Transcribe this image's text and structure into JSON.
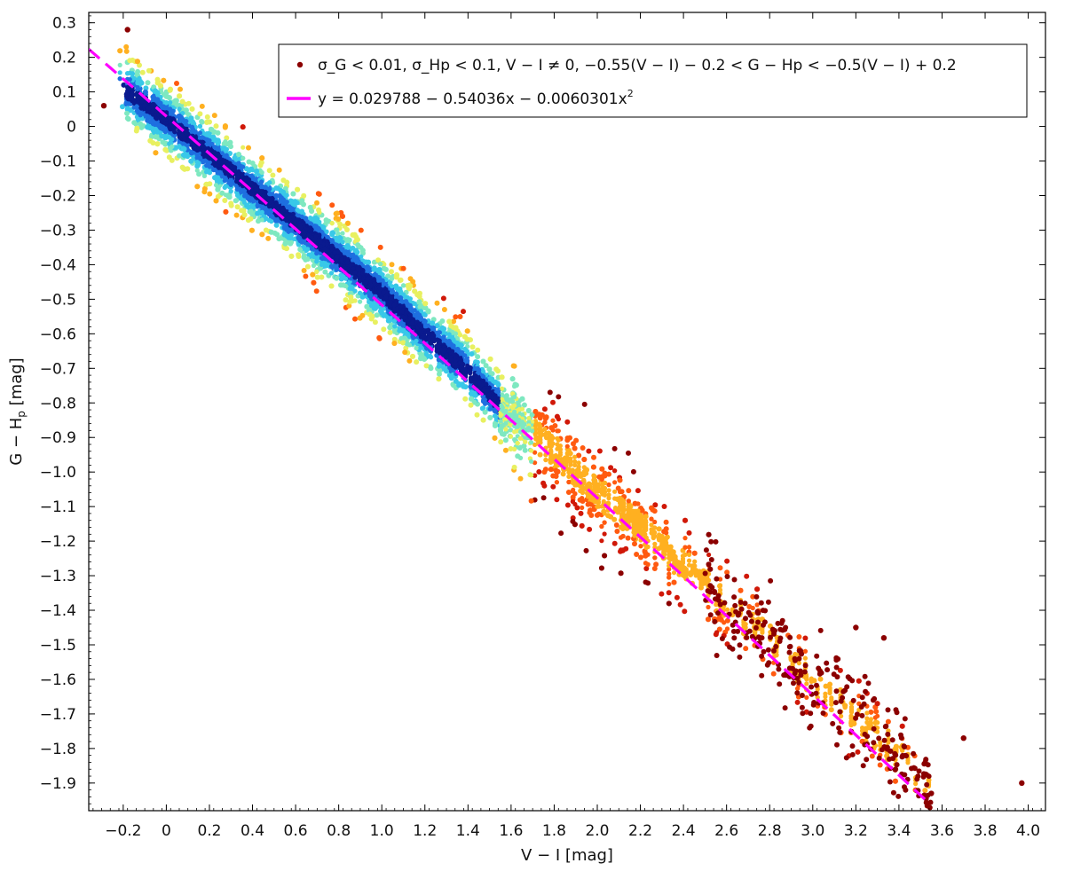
{
  "chart_data": {
    "type": "scatter",
    "title": "",
    "xlabel": "V − I [mag]",
    "ylabel": "G − H",
    "ylabel_sub": "p",
    "ylabel_unit": " [mag]",
    "xlim": [
      -0.36,
      4.08
    ],
    "ylim": [
      -1.98,
      0.33
    ],
    "x_ticks": [
      -0.2,
      0,
      0.2,
      0.4,
      0.6,
      0.8,
      1.0,
      1.2,
      1.4,
      1.6,
      1.8,
      2.0,
      2.2,
      2.4,
      2.6,
      2.8,
      3.0,
      3.2,
      3.4,
      3.6,
      3.8,
      4.0
    ],
    "x_tick_labels": [
      "−0.2",
      "0",
      "0.2",
      "0.4",
      "0.6",
      "0.8",
      "1.0",
      "1.2",
      "1.4",
      "1.6",
      "1.8",
      "2.0",
      "2.2",
      "2.4",
      "2.6",
      "2.8",
      "3.0",
      "3.2",
      "3.4",
      "3.6",
      "3.8",
      "4.0"
    ],
    "y_ticks": [
      0.3,
      0.2,
      0.1,
      0,
      -0.1,
      -0.2,
      -0.3,
      -0.4,
      -0.5,
      -0.6,
      -0.7,
      -0.8,
      -0.9,
      -1.0,
      -1.1,
      -1.2,
      -1.3,
      -1.4,
      -1.5,
      -1.6,
      -1.7,
      -1.8,
      -1.9
    ],
    "y_tick_labels": [
      "0.3",
      "0.2",
      "0.1",
      "0",
      "−0.1",
      "−0.2",
      "−0.3",
      "−0.4",
      "−0.5",
      "−0.6",
      "−0.7",
      "−0.8",
      "−0.9",
      "−1.0",
      "−1.1",
      "−1.2",
      "−1.3",
      "−1.4",
      "−1.5",
      "−1.6",
      "−1.7",
      "−1.8",
      "−1.9"
    ],
    "grid": false,
    "legend_position": "top-right",
    "series": [
      {
        "kind": "scatter-density",
        "legend_text": "σ_G < 0.01, σ_Hp < 0.1, V − I ≠ 0, −0.55(V − I) − 0.2 < G − Hp < −0.5(V − I) + 0.2",
        "marker_color": "#8b0000",
        "colormap": [
          "#0a1a8f",
          "#1e6fe0",
          "#38c8e8",
          "#7ee8c0",
          "#e8f060",
          "#ffb020",
          "#ff5a10",
          "#d01808",
          "#8b0000"
        ],
        "ridge": [
          {
            "x": -0.2,
            "y": 0.11
          },
          {
            "x": 0.0,
            "y": 0.02
          },
          {
            "x": 0.2,
            "y": -0.08
          },
          {
            "x": 0.4,
            "y": -0.18
          },
          {
            "x": 0.6,
            "y": -0.28
          },
          {
            "x": 0.8,
            "y": -0.38
          },
          {
            "x": 1.0,
            "y": -0.48
          },
          {
            "x": 1.2,
            "y": -0.6
          },
          {
            "x": 1.4,
            "y": -0.71
          },
          {
            "x": 1.6,
            "y": -0.84
          },
          {
            "x": 1.8,
            "y": -0.94
          },
          {
            "x": 2.0,
            "y": -1.06
          },
          {
            "x": 2.2,
            "y": -1.16
          },
          {
            "x": 2.4,
            "y": -1.27
          },
          {
            "x": 2.6,
            "y": -1.38
          },
          {
            "x": 2.8,
            "y": -1.49
          },
          {
            "x": 3.0,
            "y": -1.6
          },
          {
            "x": 3.2,
            "y": -1.71
          },
          {
            "x": 3.4,
            "y": -1.82
          },
          {
            "x": 3.55,
            "y": -1.92
          }
        ],
        "outliers": [
          {
            "x": -0.18,
            "y": 0.28
          },
          {
            "x": -0.29,
            "y": 0.06
          },
          {
            "x": 3.7,
            "y": -1.77
          },
          {
            "x": 3.97,
            "y": -1.9
          },
          {
            "x": 3.55,
            "y": -1.93
          },
          {
            "x": 3.2,
            "y": -1.45
          },
          {
            "x": 3.33,
            "y": -1.48
          }
        ]
      },
      {
        "kind": "fit-line",
        "legend_text": "y = 0.029788 − 0.54036x − 0.0060301x",
        "legend_sup": "2",
        "color": "#ff00ff",
        "dash": "dashed",
        "coefficients": [
          0.029788,
          -0.54036,
          -0.0060301
        ],
        "x_range": [
          -0.36,
          3.55
        ]
      }
    ]
  }
}
